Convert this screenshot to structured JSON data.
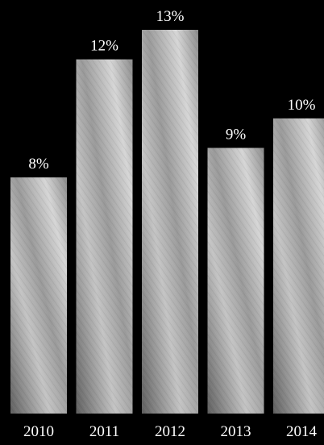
{
  "chart_data": {
    "type": "bar",
    "categories": [
      "2010",
      "2011",
      "2012",
      "2013",
      "2014"
    ],
    "values": [
      8,
      12,
      13,
      9,
      10
    ],
    "data_labels": [
      "8%",
      "12%",
      "13%",
      "9%",
      "10%"
    ],
    "title": "",
    "xlabel": "",
    "ylabel": "",
    "ylim": [
      0,
      13
    ],
    "grid": false,
    "legend": "none",
    "colors": {
      "background": "#000000",
      "text": "#ffffff",
      "bar_dark": "#6e6e6e",
      "bar_mid": "#a6a6a6",
      "bar_light": "#d2d2d2"
    }
  }
}
